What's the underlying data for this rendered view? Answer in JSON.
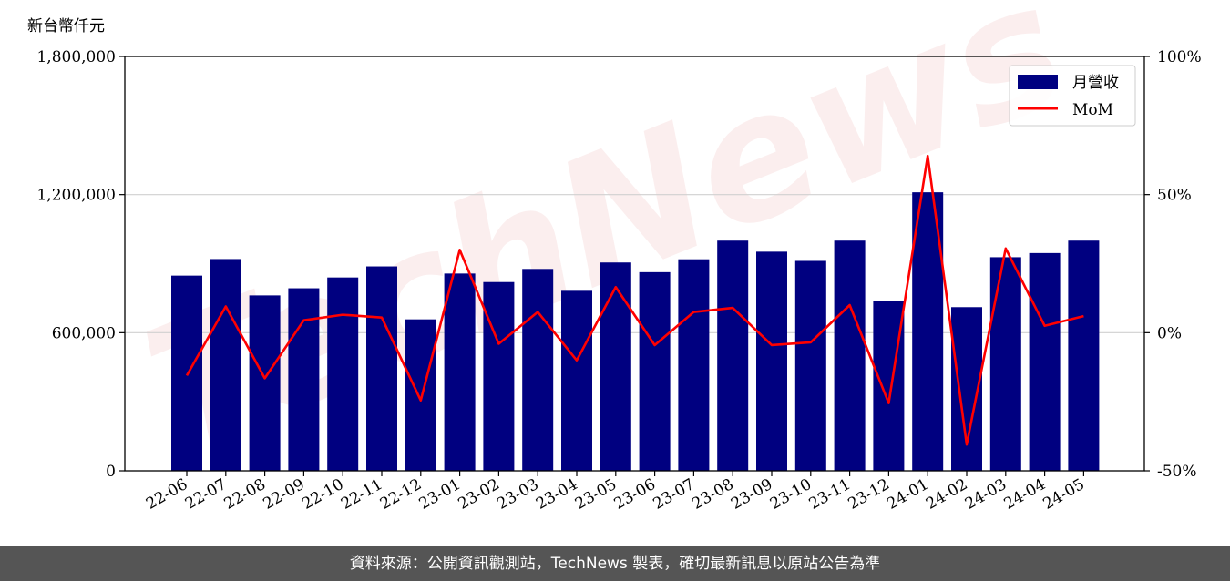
{
  "chart_data": {
    "type": "bar",
    "y_unit": "新台幣仟元",
    "categories": [
      "22-06",
      "22-07",
      "22-08",
      "22-09",
      "22-10",
      "22-11",
      "22-12",
      "23-01",
      "23-02",
      "23-03",
      "23-04",
      "23-05",
      "23-06",
      "23-07",
      "23-08",
      "23-09",
      "23-10",
      "23-11",
      "23-12",
      "24-01",
      "24-02",
      "24-03",
      "24-04",
      "24-05"
    ],
    "series": [
      {
        "name": "月營收",
        "kind": "bar",
        "axis": "left",
        "color": "#000080",
        "values": [
          848000,
          920000,
          762000,
          793000,
          840000,
          888000,
          658000,
          857000,
          820000,
          877000,
          782000,
          905000,
          863000,
          919000,
          1000000,
          952000,
          912000,
          1000000,
          738000,
          1210000,
          711000,
          928000,
          946000,
          1000000
        ]
      },
      {
        "name": "MoM",
        "kind": "line",
        "axis": "right",
        "color": "#ff0000",
        "values": [
          -15.5,
          9.5,
          -16.5,
          4.5,
          6.5,
          5.5,
          -24.5,
          30.0,
          -4.0,
          7.5,
          -10.0,
          16.5,
          -4.5,
          7.5,
          9.0,
          -4.5,
          -3.5,
          10.0,
          -25.5,
          64.0,
          -40.5,
          30.5,
          2.5,
          6.0
        ]
      }
    ],
    "ylim_left": [
      0,
      1800000
    ],
    "yticks_left": [
      "0",
      "600,000",
      "1,200,000",
      "1,800,000"
    ],
    "ylim_right": [
      -50,
      100
    ],
    "yticks_right": [
      "-50%",
      "0%",
      "50%",
      "100%"
    ],
    "grid": "horizontal",
    "legend_position": "top-right",
    "watermark": "TechNews"
  },
  "footer": {
    "source_text": "資料來源：公開資訊觀測站，TechNews 製表，確切最新訊息以原站公告為準"
  }
}
